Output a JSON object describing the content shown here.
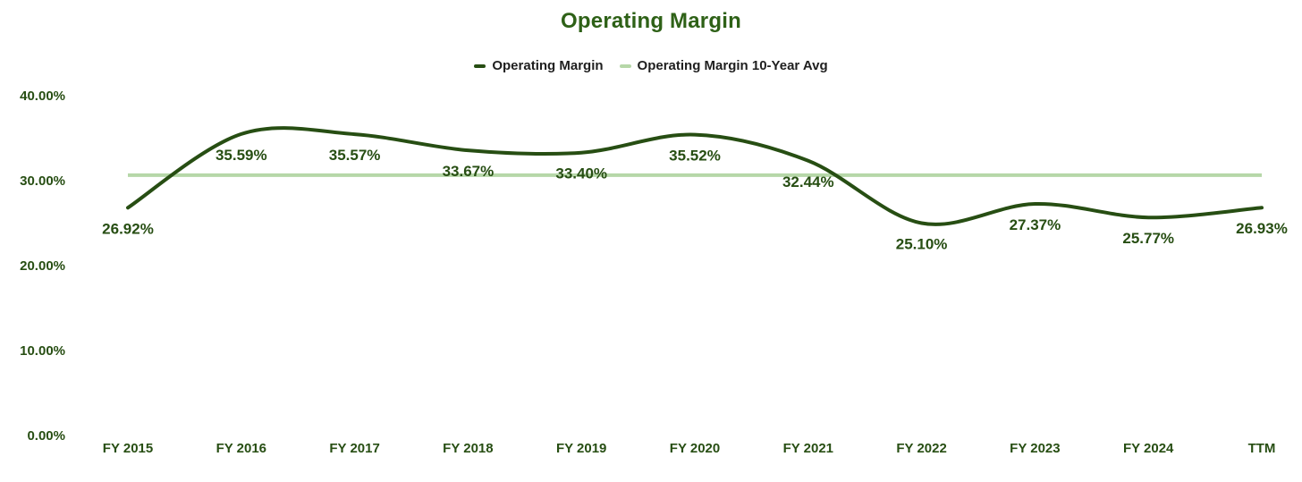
{
  "chart_data": {
    "type": "line",
    "title": "Operating Margin",
    "legend_position": "top",
    "grid": false,
    "categories": [
      "FY 2015",
      "FY 2016",
      "FY 2017",
      "FY 2018",
      "FY 2019",
      "FY 2020",
      "FY 2021",
      "FY 2022",
      "FY 2023",
      "FY 2024",
      "TTM"
    ],
    "series": [
      {
        "name": "Operating Margin",
        "type": "smooth-line",
        "color": "#274e13",
        "values": [
          26.92,
          35.59,
          35.57,
          33.67,
          33.4,
          35.52,
          32.44,
          25.1,
          27.37,
          25.77,
          26.93
        ],
        "point_labels": [
          "26.92%",
          "35.59%",
          "35.57%",
          "33.67%",
          "33.40%",
          "35.52%",
          "32.44%",
          "25.10%",
          "27.37%",
          "25.77%",
          "26.93%"
        ]
      },
      {
        "name": "Operating Margin 10-Year Avg",
        "type": "flat-line",
        "color": "#b6d7a8",
        "value": 30.75
      }
    ],
    "y_axis": {
      "range": [
        0,
        40
      ],
      "ticks": [
        {
          "label": "40.00%",
          "value": 40
        },
        {
          "label": "30.00%",
          "value": 30
        },
        {
          "label": "20.00%",
          "value": 20
        },
        {
          "label": "10.00%",
          "value": 10
        },
        {
          "label": "0.00%",
          "value": 0
        }
      ]
    },
    "colors": {
      "title": "#2e6117",
      "axis_text": "#274e13",
      "data_label": "#274e13",
      "legend_text": "#1f1f1f"
    }
  }
}
